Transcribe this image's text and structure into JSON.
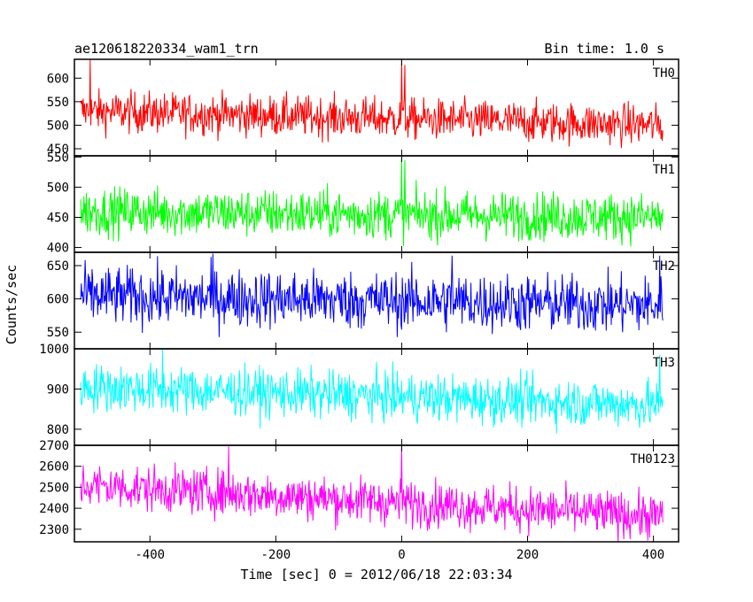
{
  "chart_data": {
    "type": "line",
    "title": "ae120618220334_wam1_trn",
    "subtitle": "Bin time: 1.0 s",
    "xlabel": "Time [sec] 0 = 2012/06/18 22:03:34",
    "ylabel": "Counts/sec",
    "xlim": [
      -520,
      440
    ],
    "xticks": [
      -400,
      -200,
      0,
      200,
      400
    ],
    "x_start": -510,
    "x_end": 415,
    "grid": false,
    "panels": [
      {
        "name": "TH0",
        "color": "#ff0000",
        "ylim": [
          435,
          640
        ],
        "yticks": [
          450,
          500,
          550,
          600
        ],
        "mean_start": 530,
        "mean_end": 500,
        "noise": 22,
        "spikes": [
          {
            "x": 0,
            "y": 640
          },
          {
            "x": 5,
            "y": 628
          },
          {
            "x": -495,
            "y": 640
          }
        ]
      },
      {
        "name": "TH1",
        "color": "#00ff00",
        "ylim": [
          392,
          552
        ],
        "yticks": [
          400,
          450,
          500,
          550
        ],
        "mean_start": 460,
        "mean_end": 450,
        "noise": 20,
        "spikes": [
          {
            "x": 0,
            "y": 552
          },
          {
            "x": 5,
            "y": 545
          }
        ]
      },
      {
        "name": "TH2",
        "color": "#0000ff",
        "ylim": [
          525,
          670
        ],
        "yticks": [
          550,
          600,
          650
        ],
        "mean_start": 605,
        "mean_end": 590,
        "noise": 22,
        "spikes": [
          {
            "x": -300,
            "y": 668
          },
          {
            "x": 80,
            "y": 665
          },
          {
            "x": 410,
            "y": 665
          }
        ]
      },
      {
        "name": "TH3",
        "color": "#00ffff",
        "ylim": [
          760,
          1000
        ],
        "yticks": [
          800,
          900,
          1000
        ],
        "mean_start": 905,
        "mean_end": 860,
        "noise": 30,
        "spikes": [
          {
            "x": -380,
            "y": 1000
          },
          {
            "x": 410,
            "y": 985
          }
        ]
      },
      {
        "name": "TH0123",
        "color": "#ff00ff",
        "ylim": [
          2240,
          2700
        ],
        "yticks": [
          2300,
          2400,
          2500,
          2600,
          2700
        ],
        "mean_start": 2510,
        "mean_end": 2360,
        "noise": 55,
        "spikes": [
          {
            "x": 0,
            "y": 2700
          },
          {
            "x": -275,
            "y": 2695
          }
        ]
      }
    ]
  }
}
